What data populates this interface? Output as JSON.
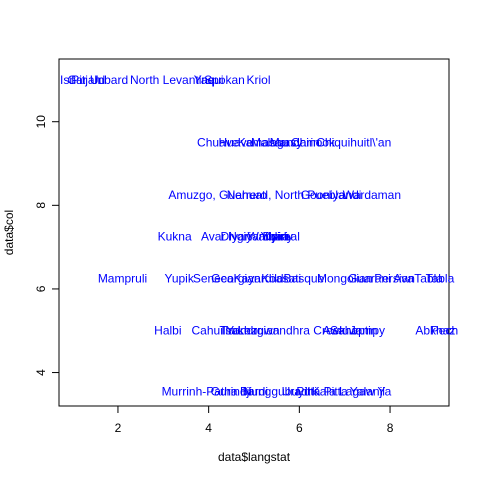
{
  "chart_data": {
    "type": "scatter",
    "xlabel": "data$langstat",
    "ylabel": "data$col",
    "xlim": [
      0.7,
      9.3
    ],
    "ylim": [
      3.2,
      11.5
    ],
    "x_ticks": [
      2,
      4,
      6,
      8
    ],
    "y_ticks": [
      4,
      6,
      8,
      10
    ],
    "grid": false,
    "label_color": "#0000ff",
    "points": [
      {
        "x": 0.9,
        "y": 11,
        "label": "Isn"
      },
      {
        "x": 1.1,
        "y": 11,
        "label": "Car"
      },
      {
        "x": 1.3,
        "y": 11,
        "label": "Pitjan"
      },
      {
        "x": 1.55,
        "y": 11,
        "label": "Ud"
      },
      {
        "x": 1.85,
        "y": 11,
        "label": "Inbard"
      },
      {
        "x": 3.2,
        "y": 11,
        "label": "North Levantine"
      },
      {
        "x": 4.0,
        "y": 11,
        "label": "Yaqui"
      },
      {
        "x": 4.35,
        "y": 11,
        "label": "Spokan"
      },
      {
        "x": 5.1,
        "y": 11,
        "label": "Kriol"
      },
      {
        "x": 4.2,
        "y": 9.5,
        "label": "Chuave"
      },
      {
        "x": 4.6,
        "y": 9.5,
        "label": "Huave"
      },
      {
        "x": 5.2,
        "y": 9.5,
        "label": "Kamasau"
      },
      {
        "x": 5.5,
        "y": 9.5,
        "label": "Malagasy"
      },
      {
        "x": 5.9,
        "y": 9.5,
        "label": "Mandarin"
      },
      {
        "x": 6.3,
        "y": 9.5,
        "label": "Chinook"
      },
      {
        "x": 7.2,
        "y": 9.5,
        "label": "Chiquihuitl\\'an"
      },
      {
        "x": 4.2,
        "y": 8.25,
        "label": "Amuzgo, Guerrero"
      },
      {
        "x": 5.7,
        "y": 8.25,
        "label": "Nahuatl, North Puebla"
      },
      {
        "x": 6.7,
        "y": 8.25,
        "label": "Gooniyandi"
      },
      {
        "x": 7.6,
        "y": 8.25,
        "label": "Wardaman"
      },
      {
        "x": 3.25,
        "y": 7.25,
        "label": "Kukna"
      },
      {
        "x": 4.1,
        "y": 7.25,
        "label": "Avar"
      },
      {
        "x": 4.6,
        "y": 7.25,
        "label": "Diyari"
      },
      {
        "x": 5.1,
        "y": 7.25,
        "label": "Ngiyambaa"
      },
      {
        "x": 5.3,
        "y": 7.25,
        "label": "Warlpiri"
      },
      {
        "x": 5.5,
        "y": 7.25,
        "label": "Yidiny"
      },
      {
        "x": 5.6,
        "y": 7.25,
        "label": "Dyirbal"
      },
      {
        "x": 2.1,
        "y": 6.25,
        "label": "Mampruli"
      },
      {
        "x": 3.35,
        "y": 6.25,
        "label": "Yupik"
      },
      {
        "x": 4.1,
        "y": 6.25,
        "label": "Seneca"
      },
      {
        "x": 4.6,
        "y": 6.25,
        "label": "Georgian"
      },
      {
        "x": 5.1,
        "y": 6.25,
        "label": "Kayardild"
      },
      {
        "x": 5.6,
        "y": 6.25,
        "label": "Koasati"
      },
      {
        "x": 6.1,
        "y": 6.25,
        "label": "Basque"
      },
      {
        "x": 7.0,
        "y": 6.25,
        "label": "Mongolian"
      },
      {
        "x": 7.8,
        "y": 6.25,
        "label": "Guarani Ava"
      },
      {
        "x": 8.1,
        "y": 6.25,
        "label": "Persian"
      },
      {
        "x": 8.85,
        "y": 6.25,
        "label": "Tabla"
      },
      {
        "x": 9.1,
        "y": 6.25,
        "label": "Tabla"
      },
      {
        "x": 3.1,
        "y": 5.0,
        "label": "Halbi"
      },
      {
        "x": 4.1,
        "y": 5.0,
        "label": "Cahuilla"
      },
      {
        "x": 4.7,
        "y": 5.0,
        "label": "Tsakhur"
      },
      {
        "x": 5.1,
        "y": 5.0,
        "label": "Lezgian"
      },
      {
        "x": 5.7,
        "y": 5.0,
        "label": "Yandruwandhra Creek"
      },
      {
        "x": 6.9,
        "y": 5.0,
        "label": "Awtuw"
      },
      {
        "x": 7.2,
        "y": 5.0,
        "label": "Sahaptin"
      },
      {
        "x": 7.5,
        "y": 5.0,
        "label": "Jampy"
      },
      {
        "x": 9.0,
        "y": 5.0,
        "label": "Abkhaz"
      },
      {
        "x": 9.2,
        "y": 5.0,
        "label": "Pech"
      },
      {
        "x": 3.8,
        "y": 3.55,
        "label": "Murrinh-Patha"
      },
      {
        "x": 4.5,
        "y": 3.55,
        "label": "Gurindji"
      },
      {
        "x": 5.0,
        "y": 3.55,
        "label": "Bardi"
      },
      {
        "x": 5.5,
        "y": 3.55,
        "label": "Nunggubuyu"
      },
      {
        "x": 6.0,
        "y": 3.55,
        "label": "Uradhi"
      },
      {
        "x": 6.5,
        "y": 3.55,
        "label": "Pitta Pitta"
      },
      {
        "x": 7.15,
        "y": 3.55,
        "label": "Kala Lagaw Ya"
      },
      {
        "x": 7.5,
        "y": 3.55,
        "label": "Yalanji"
      }
    ]
  }
}
